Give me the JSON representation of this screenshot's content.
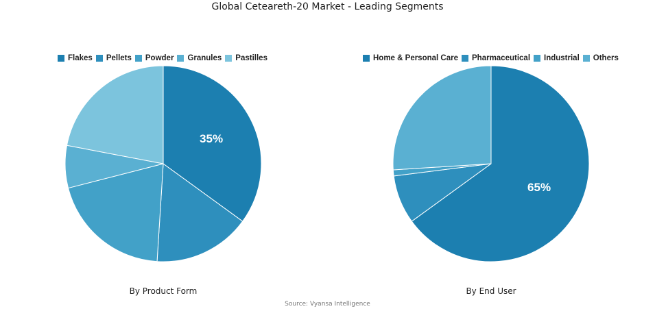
{
  "title": "Global Ceteareth-20 Market - Leading Segments",
  "source": "Source: Vyansa Intelligence",
  "chart_data": [
    {
      "type": "pie",
      "subtitle": "By Product Form",
      "categories": [
        "Flakes",
        "Pellets",
        "Powder",
        "Granules",
        "Pastilles"
      ],
      "values": [
        35,
        16,
        20,
        7,
        22
      ],
      "colors": [
        "#1c7fb0",
        "#2e8fbd",
        "#42a1c8",
        "#5ab0d2",
        "#7cc4dd"
      ],
      "labels": [
        "35%",
        "",
        "",
        "",
        ""
      ],
      "start_angle_deg": 0,
      "direction": "clockwise",
      "legend_position": "top"
    },
    {
      "type": "pie",
      "subtitle": "By End User",
      "categories": [
        "Home & Personal Care",
        "Pharmaceutical",
        "Industrial",
        "Others"
      ],
      "values": [
        65,
        8,
        1,
        26
      ],
      "colors": [
        "#1c7fb0",
        "#2e8fbd",
        "#42a1c8",
        "#5ab0d2"
      ],
      "labels": [
        "65%",
        "",
        "",
        ""
      ],
      "start_angle_deg": 0,
      "direction": "clockwise",
      "legend_position": "top"
    }
  ]
}
